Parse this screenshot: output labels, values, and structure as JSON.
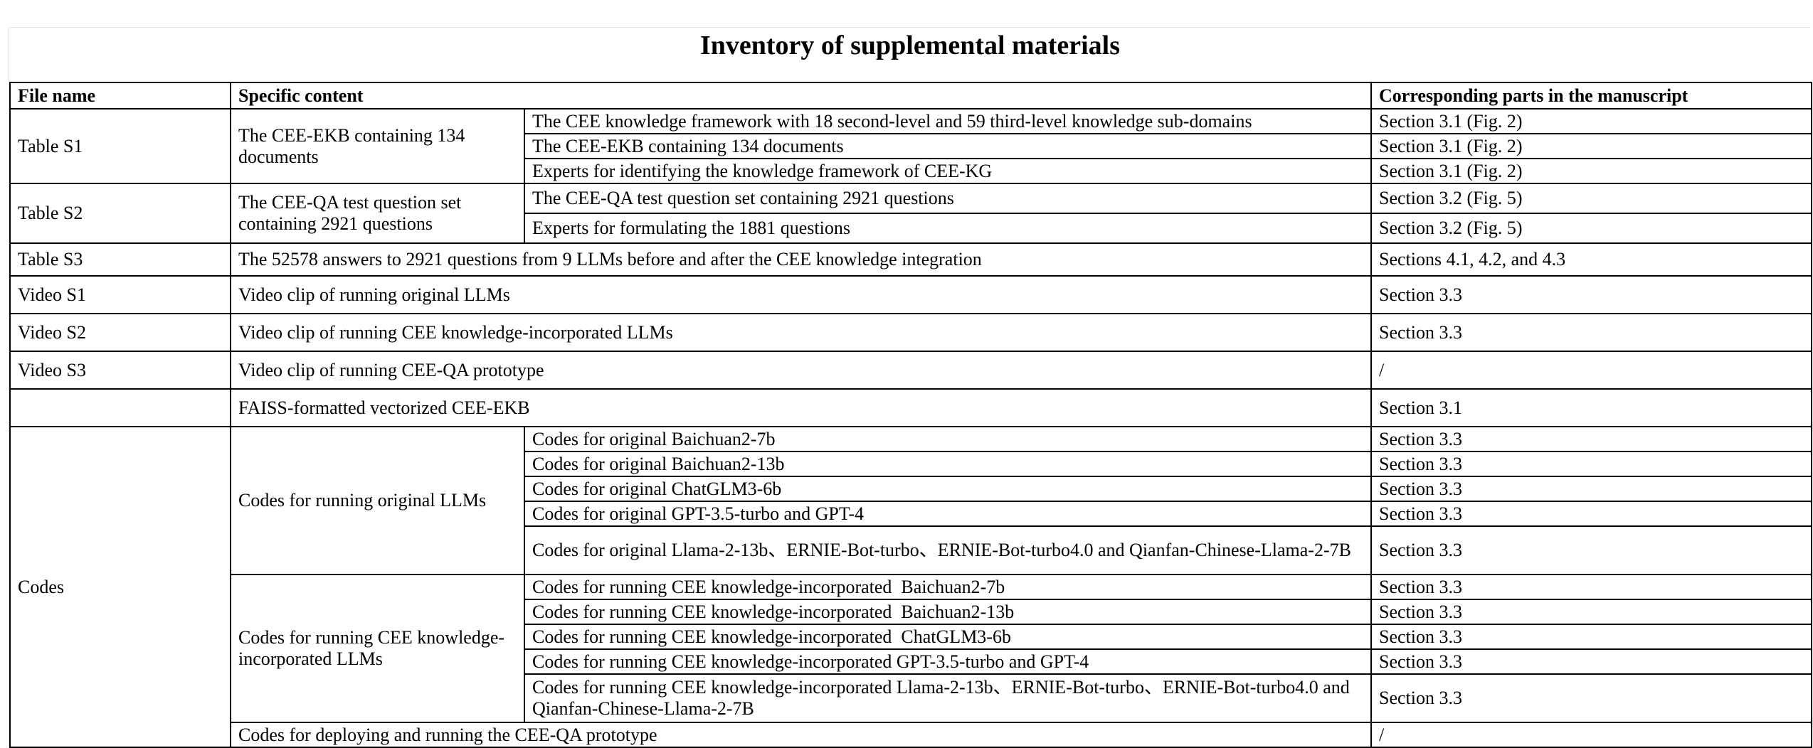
{
  "document": {
    "title": "Inventory of supplemental materials",
    "headers": {
      "file_name": "File name",
      "specific_content": "Specific content",
      "corresponding_parts": "Corresponding parts in the manuscript"
    },
    "table_s1": {
      "file": "Table S1",
      "content": "The CEE-EKB containing 134 documents",
      "items": [
        {
          "detail": "The CEE knowledge framework with 18 second-level and 59 third-level knowledge sub-domains",
          "part": "Section 3.1 (Fig. 2)"
        },
        {
          "detail": "The CEE-EKB containing 134 documents",
          "part": "Section 3.1 (Fig. 2)"
        },
        {
          "detail": "Experts for identifying the knowledge framework of CEE-KG",
          "part": "Section 3.1 (Fig. 2)"
        }
      ]
    },
    "table_s2": {
      "file": "Table S2",
      "content": "The CEE-QA test question set containing 2921 questions",
      "items": [
        {
          "detail": "The CEE-QA test question set containing 2921 questions",
          "part": "Section 3.2 (Fig. 5)"
        },
        {
          "detail": "Experts for formulating the 1881 questions",
          "part": "Section 3.2 (Fig. 5)"
        }
      ]
    },
    "table_s3": {
      "file": "Table S3",
      "content": "The 52578 answers to 2921 questions from 9 LLMs before and after the CEE knowledge integration",
      "part": "Sections 4.1, 4.2, and 4.3"
    },
    "video_s1": {
      "file": "Video S1",
      "content": "Video clip of running original LLMs",
      "part": "Section 3.3"
    },
    "video_s2": {
      "file": "Video S2",
      "content": "Video clip of running CEE knowledge-incorporated LLMs",
      "part": "Section 3.3"
    },
    "video_s3": {
      "file": "Video S3",
      "content": "Video clip of running CEE-QA prototype",
      "part": "/"
    },
    "faiss": {
      "file": "",
      "content": "FAISS-formatted vectorized CEE-EKB",
      "part": "Section 3.1"
    },
    "codes": {
      "file": "Codes",
      "original": {
        "content": "Codes for running original LLMs",
        "items": [
          {
            "detail": "Codes for original Baichuan2-7b",
            "part": "Section 3.3"
          },
          {
            "detail": "Codes for original Baichuan2-13b",
            "part": "Section 3.3"
          },
          {
            "detail": "Codes for original ChatGLM3-6b",
            "part": "Section 3.3"
          },
          {
            "detail": "Codes for original GPT-3.5-turbo and GPT-4",
            "part": "Section 3.3"
          },
          {
            "detail": "Codes for original Llama-2-13b、ERNIE-Bot-turbo、ERNIE-Bot-turbo4.0 and Qianfan-Chinese-Llama-2-7B",
            "part": "Section 3.3"
          }
        ]
      },
      "incorporated": {
        "content": "Codes for running CEE knowledge-incorporated LLMs",
        "items": [
          {
            "detail": "Codes for running CEE knowledge-incorporated  Baichuan2-7b",
            "part": "Section 3.3"
          },
          {
            "detail": "Codes for running CEE knowledge-incorporated  Baichuan2-13b",
            "part": "Section 3.3"
          },
          {
            "detail": "Codes for running CEE knowledge-incorporated  ChatGLM3-6b",
            "part": "Section 3.3"
          },
          {
            "detail": "Codes for running CEE knowledge-incorporated GPT-3.5-turbo and GPT-4",
            "part": "Section 3.3"
          },
          {
            "detail": "Codes for running CEE knowledge-incorporated Llama-2-13b、ERNIE-Bot-turbo、ERNIE-Bot-turbo4.0 and Qianfan-Chinese-Llama-2-7B",
            "part": "Section 3.3"
          }
        ]
      },
      "deploy": {
        "content": "Codes for deploying and running the CEE-QA prototype",
        "part": "/"
      }
    }
  }
}
